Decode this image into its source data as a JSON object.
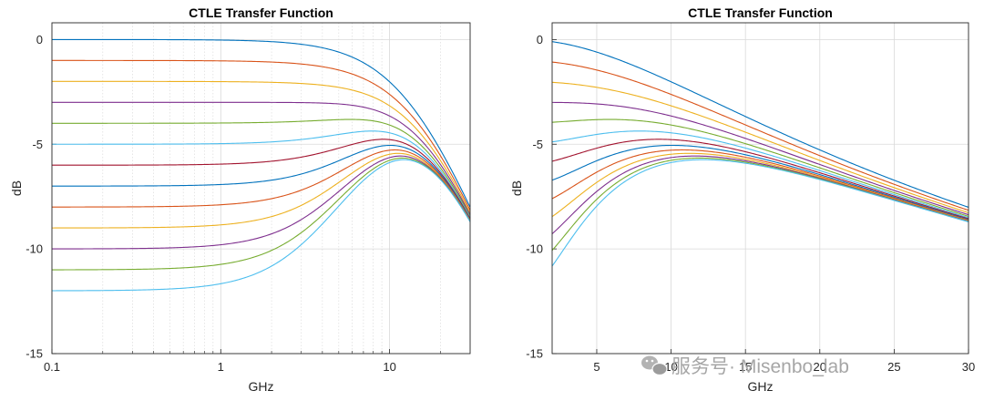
{
  "watermark": {
    "text": "服务号· Misenbo_lab"
  },
  "chart_data": [
    {
      "type": "line",
      "title": "CTLE Transfer Function",
      "xlabel": "GHz",
      "ylabel": "dB",
      "xscale": "log",
      "xlim": [
        0.1,
        30
      ],
      "ylim": [
        -15,
        0.8
      ],
      "xticks": [
        0.1,
        1,
        10
      ],
      "xtick_labels": [
        "0.1",
        "1",
        "10"
      ],
      "yticks": [
        0,
        -5,
        -10,
        -15
      ],
      "ytick_labels": [
        "0",
        "-5",
        "-10",
        "-15"
      ],
      "grid": true,
      "minor_grid": true,
      "model": {
        "pole1_ghz": 13,
        "pole2_ghz": 13,
        "dc_gains_db": [
          0,
          -1,
          -2,
          -3,
          -4,
          -5,
          -6,
          -7,
          -8,
          -9,
          -10,
          -11,
          -12
        ]
      },
      "series": [
        {
          "dc_gain_db": 0,
          "color": "#0072BD"
        },
        {
          "dc_gain_db": -1,
          "color": "#D95319"
        },
        {
          "dc_gain_db": -2,
          "color": "#EDB120"
        },
        {
          "dc_gain_db": -3,
          "color": "#7E2F8E"
        },
        {
          "dc_gain_db": -4,
          "color": "#77AC30"
        },
        {
          "dc_gain_db": -5,
          "color": "#4DBEEE"
        },
        {
          "dc_gain_db": -6,
          "color": "#A2142F"
        },
        {
          "dc_gain_db": -7,
          "color": "#0072BD"
        },
        {
          "dc_gain_db": -8,
          "color": "#D95319"
        },
        {
          "dc_gain_db": -9,
          "color": "#EDB120"
        },
        {
          "dc_gain_db": -10,
          "color": "#7E2F8E"
        },
        {
          "dc_gain_db": -11,
          "color": "#77AC30"
        },
        {
          "dc_gain_db": -12,
          "color": "#4DBEEE"
        }
      ]
    },
    {
      "type": "line",
      "title": "CTLE Transfer Function",
      "xlabel": "GHz",
      "ylabel": "dB",
      "xscale": "linear",
      "xlim": [
        2,
        30
      ],
      "ylim": [
        -15,
        0.8
      ],
      "xticks": [
        5,
        10,
        15,
        20,
        25,
        30
      ],
      "xtick_labels": [
        "5",
        "10",
        "15",
        "20",
        "25",
        "30"
      ],
      "yticks": [
        0,
        -5,
        -10,
        -15
      ],
      "ytick_labels": [
        "0",
        "-5",
        "-10",
        "-15"
      ],
      "grid": true,
      "minor_grid": false,
      "model": {
        "pole1_ghz": 13,
        "pole2_ghz": 13,
        "dc_gains_db": [
          0,
          -1,
          -2,
          -3,
          -4,
          -5,
          -6,
          -7,
          -8,
          -9,
          -10,
          -11,
          -12
        ]
      },
      "series": [
        {
          "dc_gain_db": 0,
          "color": "#0072BD"
        },
        {
          "dc_gain_db": -1,
          "color": "#D95319"
        },
        {
          "dc_gain_db": -2,
          "color": "#EDB120"
        },
        {
          "dc_gain_db": -3,
          "color": "#7E2F8E"
        },
        {
          "dc_gain_db": -4,
          "color": "#77AC30"
        },
        {
          "dc_gain_db": -5,
          "color": "#4DBEEE"
        },
        {
          "dc_gain_db": -6,
          "color": "#A2142F"
        },
        {
          "dc_gain_db": -7,
          "color": "#0072BD"
        },
        {
          "dc_gain_db": -8,
          "color": "#D95319"
        },
        {
          "dc_gain_db": -9,
          "color": "#EDB120"
        },
        {
          "dc_gain_db": -10,
          "color": "#7E2F8E"
        },
        {
          "dc_gain_db": -11,
          "color": "#77AC30"
        },
        {
          "dc_gain_db": -12,
          "color": "#4DBEEE"
        }
      ]
    }
  ]
}
